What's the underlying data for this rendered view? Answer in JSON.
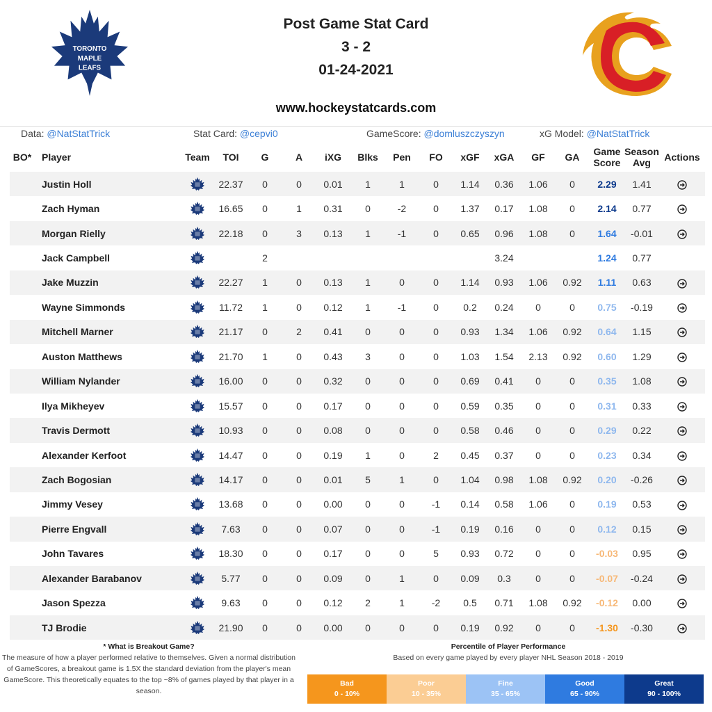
{
  "header": {
    "title": "Post Game Stat Card",
    "score": "3 - 2",
    "date": "01-24-2021",
    "website": "www.hockeystatcards.com",
    "home_logo": "toronto-maple-leafs-logo",
    "away_logo": "calgary-flames-logo"
  },
  "credits": {
    "data_label": "Data: ",
    "data_link": "@NatStatTrick",
    "card_label": "Stat Card: ",
    "card_link": "@cepvi0",
    "gamescore_label": "GameScore: ",
    "gamescore_link": "@domluszczyszyn",
    "xg_label": "xG Model: ",
    "xg_link": "@NatStatTrick"
  },
  "table": {
    "headers": {
      "bo": "BO*",
      "player": "Player",
      "team": "Team",
      "toi": "TOI",
      "g": "G",
      "a": "A",
      "ixg": "iXG",
      "blks": "Blks",
      "pen": "Pen",
      "fo": "FO",
      "xgf": "xGF",
      "xga": "xGA",
      "gf": "GF",
      "ga": "GA",
      "gamescore_1": "Game",
      "gamescore_2": "Score",
      "season_1": "Season",
      "season_2": "Avg",
      "actions": "Actions"
    },
    "rows": [
      {
        "player": "Justin Holl",
        "toi": "22.37",
        "g": "0",
        "a": "0",
        "ixg": "0.01",
        "blks": "1",
        "pen": "1",
        "fo": "0",
        "xgf": "1.14",
        "xga": "0.36",
        "gf": "1.06",
        "ga": "0",
        "gs": "2.29",
        "avg": "1.41",
        "tier": "great",
        "action": true
      },
      {
        "player": "Zach Hyman",
        "toi": "16.65",
        "g": "0",
        "a": "1",
        "ixg": "0.31",
        "blks": "0",
        "pen": "-2",
        "fo": "0",
        "xgf": "1.37",
        "xga": "0.17",
        "gf": "1.08",
        "ga": "0",
        "gs": "2.14",
        "avg": "0.77",
        "tier": "great",
        "action": true
      },
      {
        "player": "Morgan Rielly",
        "toi": "22.18",
        "g": "0",
        "a": "3",
        "ixg": "0.13",
        "blks": "1",
        "pen": "-1",
        "fo": "0",
        "xgf": "0.65",
        "xga": "0.96",
        "gf": "1.08",
        "ga": "0",
        "gs": "1.64",
        "avg": "-0.01",
        "tier": "good",
        "action": true
      },
      {
        "player": "Jack Campbell",
        "toi": "",
        "g": "2",
        "a": "",
        "ixg": "",
        "blks": "",
        "pen": "",
        "fo": "",
        "xgf": "",
        "xga": "3.24",
        "gf": "",
        "ga": "",
        "gs": "1.24",
        "avg": "0.77",
        "tier": "good",
        "action": false
      },
      {
        "player": "Jake Muzzin",
        "toi": "22.27",
        "g": "1",
        "a": "0",
        "ixg": "0.13",
        "blks": "1",
        "pen": "0",
        "fo": "0",
        "xgf": "1.14",
        "xga": "0.93",
        "gf": "1.06",
        "ga": "0.92",
        "gs": "1.11",
        "avg": "0.63",
        "tier": "good",
        "action": true
      },
      {
        "player": "Wayne Simmonds",
        "toi": "11.72",
        "g": "1",
        "a": "0",
        "ixg": "0.12",
        "blks": "1",
        "pen": "-1",
        "fo": "0",
        "xgf": "0.2",
        "xga": "0.24",
        "gf": "0",
        "ga": "0",
        "gs": "0.75",
        "avg": "-0.19",
        "tier": "fine",
        "action": true
      },
      {
        "player": "Mitchell Marner",
        "toi": "21.17",
        "g": "0",
        "a": "2",
        "ixg": "0.41",
        "blks": "0",
        "pen": "0",
        "fo": "0",
        "xgf": "0.93",
        "xga": "1.34",
        "gf": "1.06",
        "ga": "0.92",
        "gs": "0.64",
        "avg": "1.15",
        "tier": "fine",
        "action": true
      },
      {
        "player": "Auston Matthews",
        "toi": "21.70",
        "g": "1",
        "a": "0",
        "ixg": "0.43",
        "blks": "3",
        "pen": "0",
        "fo": "0",
        "xgf": "1.03",
        "xga": "1.54",
        "gf": "2.13",
        "ga": "0.92",
        "gs": "0.60",
        "avg": "1.29",
        "tier": "fine",
        "action": true
      },
      {
        "player": "William Nylander",
        "toi": "16.00",
        "g": "0",
        "a": "0",
        "ixg": "0.32",
        "blks": "0",
        "pen": "0",
        "fo": "0",
        "xgf": "0.69",
        "xga": "0.41",
        "gf": "0",
        "ga": "0",
        "gs": "0.35",
        "avg": "1.08",
        "tier": "fine",
        "action": true
      },
      {
        "player": "Ilya Mikheyev",
        "toi": "15.57",
        "g": "0",
        "a": "0",
        "ixg": "0.17",
        "blks": "0",
        "pen": "0",
        "fo": "0",
        "xgf": "0.59",
        "xga": "0.35",
        "gf": "0",
        "ga": "0",
        "gs": "0.31",
        "avg": "0.33",
        "tier": "fine",
        "action": true
      },
      {
        "player": "Travis Dermott",
        "toi": "10.93",
        "g": "0",
        "a": "0",
        "ixg": "0.08",
        "blks": "0",
        "pen": "0",
        "fo": "0",
        "xgf": "0.58",
        "xga": "0.46",
        "gf": "0",
        "ga": "0",
        "gs": "0.29",
        "avg": "0.22",
        "tier": "fine",
        "action": true
      },
      {
        "player": "Alexander Kerfoot",
        "toi": "14.47",
        "g": "0",
        "a": "0",
        "ixg": "0.19",
        "blks": "1",
        "pen": "0",
        "fo": "2",
        "xgf": "0.45",
        "xga": "0.37",
        "gf": "0",
        "ga": "0",
        "gs": "0.23",
        "avg": "0.34",
        "tier": "fine",
        "action": true
      },
      {
        "player": "Zach Bogosian",
        "toi": "14.17",
        "g": "0",
        "a": "0",
        "ixg": "0.01",
        "blks": "5",
        "pen": "1",
        "fo": "0",
        "xgf": "1.04",
        "xga": "0.98",
        "gf": "1.08",
        "ga": "0.92",
        "gs": "0.20",
        "avg": "-0.26",
        "tier": "fine",
        "action": true
      },
      {
        "player": "Jimmy Vesey",
        "toi": "13.68",
        "g": "0",
        "a": "0",
        "ixg": "0.00",
        "blks": "0",
        "pen": "0",
        "fo": "-1",
        "xgf": "0.14",
        "xga": "0.58",
        "gf": "1.06",
        "ga": "0",
        "gs": "0.19",
        "avg": "0.53",
        "tier": "fine",
        "action": true
      },
      {
        "player": "Pierre Engvall",
        "toi": "7.63",
        "g": "0",
        "a": "0",
        "ixg": "0.07",
        "blks": "0",
        "pen": "0",
        "fo": "-1",
        "xgf": "0.19",
        "xga": "0.16",
        "gf": "0",
        "ga": "0",
        "gs": "0.12",
        "avg": "0.15",
        "tier": "fine",
        "action": true
      },
      {
        "player": "John Tavares",
        "toi": "18.30",
        "g": "0",
        "a": "0",
        "ixg": "0.17",
        "blks": "0",
        "pen": "0",
        "fo": "5",
        "xgf": "0.93",
        "xga": "0.72",
        "gf": "0",
        "ga": "0",
        "gs": "-0.03",
        "avg": "0.95",
        "tier": "poor",
        "action": true
      },
      {
        "player": "Alexander Barabanov",
        "toi": "5.77",
        "g": "0",
        "a": "0",
        "ixg": "0.09",
        "blks": "0",
        "pen": "1",
        "fo": "0",
        "xgf": "0.09",
        "xga": "0.3",
        "gf": "0",
        "ga": "0",
        "gs": "-0.07",
        "avg": "-0.24",
        "tier": "poor",
        "action": true
      },
      {
        "player": "Jason Spezza",
        "toi": "9.63",
        "g": "0",
        "a": "0",
        "ixg": "0.12",
        "blks": "2",
        "pen": "1",
        "fo": "-2",
        "xgf": "0.5",
        "xga": "0.71",
        "gf": "1.08",
        "ga": "0.92",
        "gs": "-0.12",
        "avg": "0.00",
        "tier": "poor",
        "action": true
      },
      {
        "player": "TJ Brodie",
        "toi": "21.90",
        "g": "0",
        "a": "0",
        "ixg": "0.00",
        "blks": "0",
        "pen": "0",
        "fo": "0",
        "xgf": "0.19",
        "xga": "0.92",
        "gf": "0",
        "ga": "0",
        "gs": "-1.30",
        "avg": "-0.30",
        "tier": "bad",
        "action": true
      }
    ]
  },
  "tier_colors": {
    "great": "#0d3a8c",
    "good": "#2f7be0",
    "fine": "#8fb8ee",
    "poor": "#f7b877",
    "bad": "#f5961d"
  },
  "footer": {
    "breakout_title": "* What is Breakout Game?",
    "breakout_text": "The measure of how a player performed relative to themselves. Given a normal distribution of GameScores, a breakout game is 1.5X the standard deviation from the player's mean GameScore. This theoretically equates to the top ~8% of games played by that player in a season.",
    "percentile_title": "Percentile of Player Performance",
    "percentile_sub": "Based on every game played by every player NHL Season 2018 - 2019",
    "legend": [
      {
        "label": "Bad",
        "range": "0 - 10%",
        "color": "#f5961d"
      },
      {
        "label": "Poor",
        "range": "10 - 35%",
        "color": "#fbcd94"
      },
      {
        "label": "Fine",
        "range": "35 - 65%",
        "color": "#9cc3f5"
      },
      {
        "label": "Good",
        "range": "65 - 90%",
        "color": "#2f7be0"
      },
      {
        "label": "Great",
        "range": "90 - 100%",
        "color": "#0d3a8c"
      }
    ]
  }
}
